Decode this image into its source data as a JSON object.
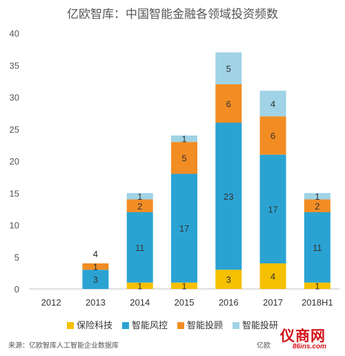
{
  "chart_data": {
    "type": "bar",
    "stacked": true,
    "title": "亿欧智库：中国智能金融各领域投资频数",
    "categories": [
      "2012",
      "2013",
      "2014",
      "2015",
      "2016",
      "2017",
      "2018H1"
    ],
    "series": [
      {
        "name": "保险科技",
        "color": "#f5c000",
        "values": [
          0,
          0,
          1,
          1,
          3,
          4,
          1
        ]
      },
      {
        "name": "智能风控",
        "color": "#2aa3d3",
        "values": [
          0,
          3,
          11,
          17,
          23,
          17,
          11
        ]
      },
      {
        "name": "智能投顾",
        "color": "#f28d24",
        "values": [
          0,
          1,
          2,
          5,
          6,
          6,
          2
        ]
      },
      {
        "name": "智能投研",
        "color": "#9fd3e5",
        "values": [
          0,
          0,
          1,
          1,
          5,
          4,
          1
        ]
      }
    ],
    "totals_shown": {
      "2013": "4"
    },
    "y_ticks": [
      "0",
      "5",
      "10",
      "15",
      "20",
      "25",
      "30",
      "35",
      "40"
    ],
    "ylim": [
      0,
      40
    ],
    "grid": false,
    "legend_position": "bottom"
  },
  "source": "来源：亿欧智库人工智能企业数据库",
  "source_right": "亿欧",
  "logo": {
    "text": "仪商网",
    "sub": "86ins.com"
  }
}
